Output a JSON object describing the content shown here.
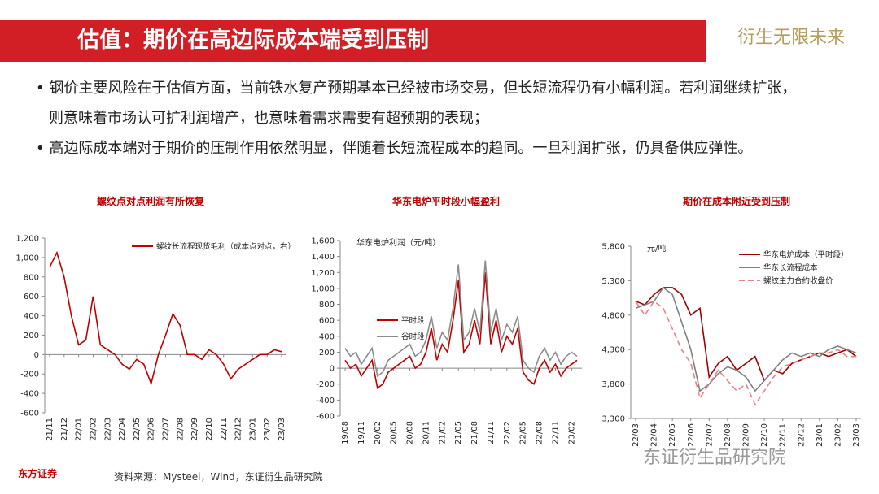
{
  "header": {
    "title": "估值：期价在高边际成本端受到压制",
    "motto": "衍生无限未来"
  },
  "bullets": [
    "• 钢价主要风险在于估值方面，当前铁水复产预期基本已经被市场交易，但长短流程仍有小幅利润。若利润继续扩张，则意味着市场认可扩利润增产，也意味着需求需要有超预期的表现；",
    "• 高边际成本端对于期价的压制作用依然明显，伴随着长短流程成本的趋同。一旦利润扩张，仍具备供应弹性。"
  ],
  "footer": {
    "logo": "东方证券",
    "source": "资料来源：Mysteel，Wind，东证衍生品研究院",
    "watermark": "东证衍生品研究院"
  },
  "chart_data": [
    {
      "type": "line",
      "title": "螺纹点对点利润有所恢复",
      "legend": "upper right",
      "categories": [
        "21/11",
        null,
        "21/12",
        null,
        "22/01",
        null,
        "22/02",
        null,
        "22/03",
        null,
        "22/04",
        null,
        "22/05",
        null,
        "22/06",
        null,
        "22/07",
        null,
        "22/08",
        null,
        "22/09",
        null,
        "22/10",
        null,
        "22/11",
        null,
        "22/12",
        null,
        "23/01",
        null,
        "23/02",
        null,
        "23/03"
      ],
      "series": [
        {
          "name": "螺纹长流程现货毛利（成本点对点，右）",
          "color": "#c00000",
          "values": [
            900,
            1050,
            800,
            400,
            100,
            150,
            600,
            100,
            50,
            0,
            -100,
            -150,
            -50,
            -100,
            -300,
            0,
            200,
            420,
            300,
            0,
            0,
            -50,
            50,
            0,
            -100,
            -250,
            -150,
            -100,
            -50,
            0,
            0,
            50,
            30
          ]
        }
      ],
      "ylim": [
        -600,
        1200
      ],
      "yticks": [
        -600,
        -400,
        -200,
        0,
        200,
        400,
        600,
        800,
        {
          "value": 1000,
          "label": "1,000"
        },
        {
          "value": 1200,
          "label": "1,200"
        }
      ]
    },
    {
      "type": "line",
      "title": "华东电炉平时段小幅盈利",
      "y_label": "华东电炉利润（元/吨）",
      "legend": "center left",
      "categories": [
        "19/08",
        null,
        null,
        "19/11",
        null,
        null,
        "20/02",
        null,
        null,
        "20/05",
        null,
        null,
        "20/08",
        null,
        null,
        "20/11",
        null,
        null,
        "21/02",
        null,
        null,
        "21/05",
        null,
        null,
        "21/08",
        null,
        null,
        "21/11",
        null,
        null,
        "22/02",
        null,
        null,
        "22/05",
        null,
        null,
        "22/08",
        null,
        null,
        "22/11",
        null,
        null,
        "23/02",
        null
      ],
      "series": [
        {
          "name": "平时段",
          "color": "#c00000",
          "values": [
            100,
            0,
            50,
            -100,
            0,
            100,
            -250,
            -200,
            -50,
            0,
            50,
            100,
            150,
            0,
            50,
            200,
            500,
            100,
            300,
            200,
            600,
            1100,
            200,
            300,
            600,
            300,
            1200,
            300,
            600,
            200,
            400,
            300,
            500,
            -50,
            -150,
            -200,
            0,
            100,
            -50,
            50,
            -100,
            0,
            50,
            100
          ]
        },
        {
          "name": "谷时段",
          "color": "#8c8c8c",
          "values": [
            250,
            150,
            200,
            50,
            150,
            250,
            -100,
            -50,
            100,
            150,
            200,
            250,
            300,
            150,
            200,
            350,
            650,
            250,
            450,
            350,
            750,
            1300,
            350,
            450,
            750,
            450,
            1350,
            450,
            750,
            350,
            550,
            450,
            650,
            100,
            0,
            -50,
            150,
            250,
            100,
            200,
            50,
            150,
            200,
            150
          ]
        }
      ],
      "ylim": [
        -600,
        1600
      ],
      "yticks": [
        -600,
        -400,
        -200,
        0,
        200,
        400,
        600,
        800,
        {
          "value": 1000,
          "label": "1,000"
        },
        {
          "value": 1200,
          "label": "1,200"
        },
        {
          "value": 1400,
          "label": "1,400"
        },
        {
          "value": 1600,
          "label": "1,600"
        }
      ]
    },
    {
      "type": "line",
      "title": "期价在成本附近受到压制",
      "y_label": "元/吨",
      "legend": "upper right",
      "categories": [
        "22/03",
        null,
        "22/04",
        null,
        "22/05",
        null,
        "22/06",
        null,
        "22/07",
        null,
        "22/08",
        null,
        "22/09",
        null,
        "22/10",
        null,
        "22/11",
        null,
        "22/12",
        null,
        "23/01",
        null,
        "23/02",
        null,
        "23/03"
      ],
      "series": [
        {
          "name": "华东电炉成本（平时段）",
          "color": "#a00000",
          "values": [
            5000,
            4950,
            5100,
            5200,
            5200,
            5100,
            4800,
            4900,
            3900,
            4100,
            4200,
            4000,
            4100,
            4200,
            3850,
            4000,
            3950,
            4100,
            4150,
            4200,
            4250,
            4200,
            4250,
            4300,
            4200
          ]
        },
        {
          "name": "华东长流程成本",
          "color": "#808080",
          "values": [
            4900,
            4950,
            5000,
            5200,
            5100,
            4700,
            4300,
            3700,
            3800,
            3950,
            4050,
            4000,
            3900,
            3700,
            3850,
            4000,
            4150,
            4250,
            4200,
            4250,
            4200,
            4300,
            4350,
            4300,
            4250
          ]
        },
        {
          "name": "螺纹主力合约收盘价",
          "color": "#f08080",
          "dashed": true,
          "values": [
            5000,
            4800,
            5000,
            4900,
            4600,
            4300,
            4100,
            3600,
            3800,
            4000,
            3850,
            3700,
            3800,
            3500,
            3700,
            3900,
            4050,
            4100,
            4150,
            4200,
            4250,
            4250,
            4300,
            4200,
            4200
          ]
        }
      ],
      "ylim": [
        3300,
        5800
      ],
      "yticks": [
        {
          "value": 3300,
          "label": "3,300"
        },
        {
          "value": 3800,
          "label": "3,800"
        },
        {
          "value": 4300,
          "label": "4,300"
        },
        {
          "value": 4800,
          "label": "4,800"
        },
        {
          "value": 5300,
          "label": "5,300"
        },
        {
          "value": 5800,
          "label": "5,800"
        }
      ]
    }
  ]
}
